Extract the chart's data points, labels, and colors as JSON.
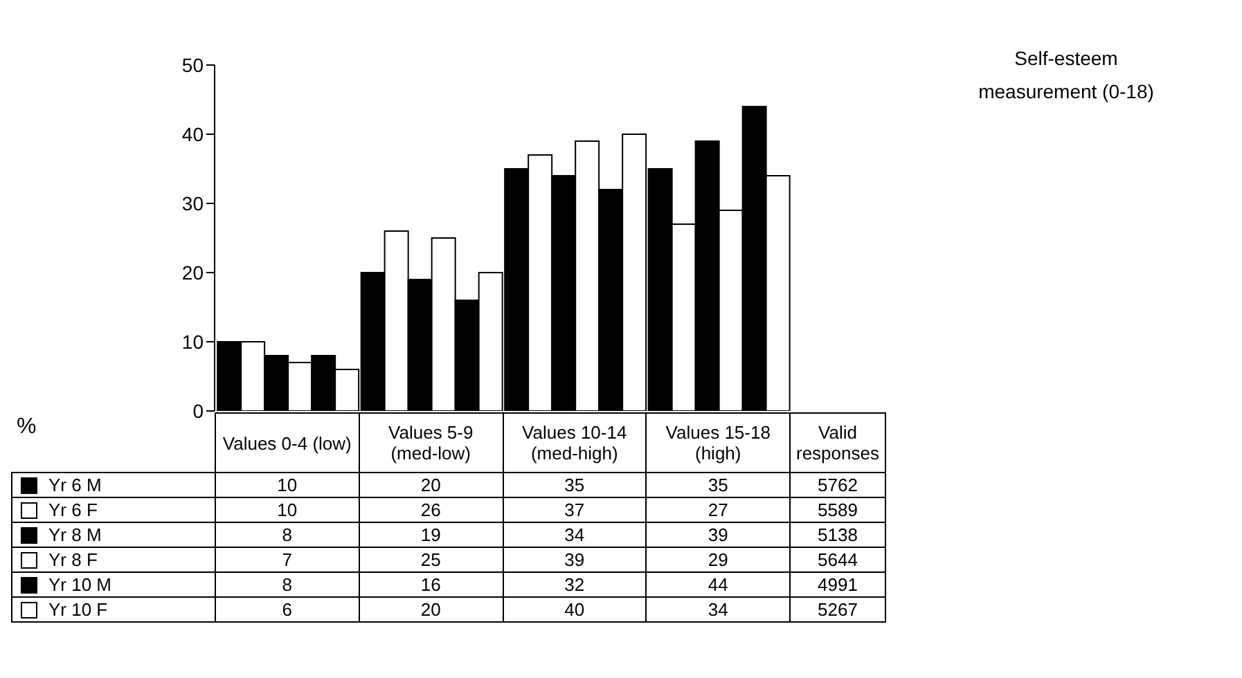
{
  "chart_data": {
    "type": "bar",
    "title": "Self-esteem measurement (0-18)",
    "categories": [
      "Values 0-4 (low)",
      "Values 5-9 (med-low)",
      "Values 10-14 (med-high)",
      "Values 15-18 (high)"
    ],
    "series": [
      {
        "name": "Yr 6 M",
        "color": "#000000",
        "values": [
          10,
          20,
          35,
          35
        ]
      },
      {
        "name": "Yr 6 F",
        "color": "#ffffff",
        "values": [
          10,
          26,
          37,
          27
        ]
      },
      {
        "name": "Yr 8 M",
        "color": "#000000",
        "values": [
          8,
          19,
          34,
          39
        ]
      },
      {
        "name": "Yr 8 F",
        "color": "#ffffff",
        "values": [
          7,
          25,
          39,
          29
        ]
      },
      {
        "name": "Yr 10 M",
        "color": "#000000",
        "values": [
          8,
          16,
          32,
          44
        ]
      },
      {
        "name": "Yr 10 F",
        "color": "#ffffff",
        "values": [
          6,
          20,
          40,
          34
        ]
      }
    ],
    "ylim": [
      0,
      50
    ],
    "yticks": [
      0,
      10,
      20,
      30,
      40,
      50
    ],
    "data_labels": true,
    "legend": "bottom",
    "annotations": [
      "%",
      "Valid responses",
      "5762",
      "5589",
      "5138",
      "5644",
      "4991",
      "5267"
    ]
  }
}
